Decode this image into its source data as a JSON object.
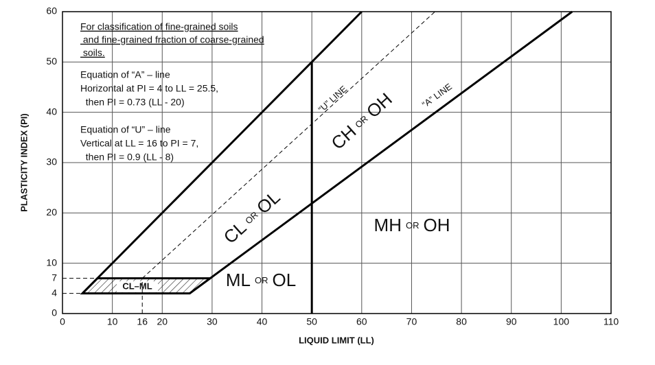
{
  "chart_data": {
    "type": "line",
    "xlabel": "LIQUID LIMIT (LL)",
    "ylabel": "PLASTICITY INDEX (PI)",
    "xlim": [
      0,
      110
    ],
    "ylim": [
      0,
      60
    ],
    "xticks": [
      0,
      10,
      16,
      20,
      30,
      40,
      50,
      60,
      70,
      80,
      90,
      100,
      110
    ],
    "yticks": [
      0,
      4,
      7,
      10,
      20,
      30,
      40,
      50,
      60
    ],
    "grid": true,
    "color": "#000000",
    "series": [
      {
        "x": [
          4,
          60
        ],
        "values": [
          4,
          60
        ],
        "dashed": false
      },
      {
        "x": [
          25.5,
          102.2
        ],
        "values": [
          4,
          60
        ],
        "dashed": false
      },
      {
        "x": [
          16,
          74.7
        ],
        "values": [
          7,
          60
        ],
        "dashed": true
      },
      {
        "x": [
          50,
          50
        ],
        "values": [
          0,
          50
        ],
        "dashed": false
      },
      {
        "x": [
          16,
          16
        ],
        "values": [
          0,
          7
        ],
        "dashed": true
      },
      {
        "x": [
          0,
          7
        ],
        "values": [
          7,
          7
        ],
        "dashed": true
      },
      {
        "x": [
          0,
          4
        ],
        "values": [
          4,
          4
        ],
        "dashed": true
      }
    ],
    "hatch": {
      "label": "CL–ML",
      "x": [
        4,
        25.5,
        29.6,
        7
      ],
      "values": [
        4,
        4,
        7,
        7
      ]
    },
    "line_labels": [
      "“U” LINE",
      "“A” LINE"
    ],
    "zones": [
      [
        "CH",
        "OR",
        "OH"
      ],
      [
        "CL",
        "OR",
        "OL"
      ],
      [
        "MH",
        "OR",
        "OH"
      ],
      [
        "ML",
        "OR",
        "OL"
      ]
    ],
    "note": [
      "For classification of fine-grained soils",
      " and fine-grained fraction of coarse-grained",
      " soils."
    ],
    "equations": [
      "Equation of “A” – line",
      "Horizontal at PI = 4 to LL = 25.5,",
      "  then PI = 0.73 (LL - 20)",
      "Equation of “U” – line",
      "Vertical at LL = 16 to PI = 7,",
      "  then PI = 0.9 (LL - 8)"
    ]
  }
}
